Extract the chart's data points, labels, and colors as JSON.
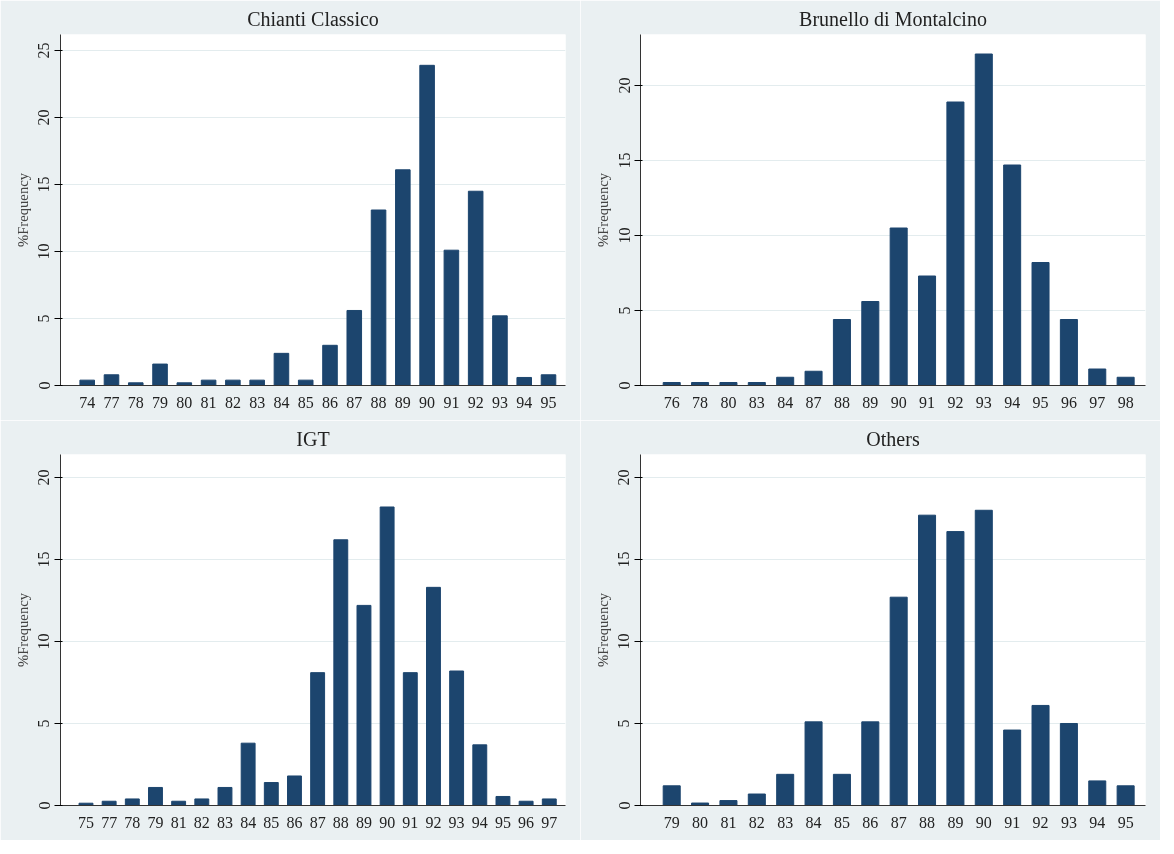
{
  "chart_data": [
    {
      "type": "bar",
      "title": "Chianti Classico",
      "ylabel": "%Frequency",
      "color": "#1c456e",
      "grid": "y",
      "ylim": [
        0,
        26.2
      ],
      "yticks": [
        0,
        5,
        10,
        15,
        20,
        25
      ],
      "categories": [
        "74",
        "77",
        "78",
        "79",
        "80",
        "81",
        "82",
        "83",
        "84",
        "85",
        "86",
        "87",
        "88",
        "89",
        "90",
        "91",
        "92",
        "93",
        "94",
        "95"
      ],
      "values": [
        0.4,
        0.8,
        0.2,
        1.6,
        0.2,
        0.4,
        0.4,
        0.4,
        2.4,
        0.4,
        3.0,
        5.6,
        13.1,
        16.1,
        23.9,
        10.1,
        14.5,
        5.2,
        0.6,
        0.8
      ]
    },
    {
      "type": "bar",
      "title": "Brunello di Montalcino",
      "ylabel": "%Frequency",
      "color": "#1c456e",
      "grid": "y",
      "ylim": [
        0,
        23.4
      ],
      "yticks": [
        0,
        5,
        10,
        15,
        20
      ],
      "categories": [
        "76",
        "78",
        "80",
        "83",
        "84",
        "87",
        "88",
        "89",
        "90",
        "91",
        "92",
        "93",
        "94",
        "95",
        "96",
        "97",
        "98"
      ],
      "values": [
        0.2,
        0.2,
        0.2,
        0.2,
        0.55,
        0.95,
        4.4,
        5.6,
        10.5,
        7.3,
        18.9,
        22.1,
        14.7,
        8.2,
        4.4,
        1.1,
        0.55
      ]
    },
    {
      "type": "bar",
      "title": "IGT",
      "ylabel": "%Frequency",
      "color": "#1c456e",
      "grid": "y",
      "ylim": [
        0,
        21.4
      ],
      "yticks": [
        0,
        5,
        10,
        15,
        20
      ],
      "categories": [
        "75",
        "77",
        "78",
        "79",
        "81",
        "82",
        "83",
        "84",
        "85",
        "86",
        "87",
        "88",
        "89",
        "90",
        "91",
        "92",
        "93",
        "94",
        "95",
        "96",
        "97"
      ],
      "values": [
        0.14,
        0.26,
        0.4,
        1.1,
        0.26,
        0.4,
        1.1,
        3.8,
        1.4,
        1.8,
        8.1,
        16.2,
        12.2,
        18.2,
        8.1,
        13.3,
        8.2,
        3.7,
        0.55,
        0.26,
        0.4
      ]
    },
    {
      "type": "bar",
      "title": "Others",
      "ylabel": "%Frequency",
      "color": "#1c456e",
      "grid": "y",
      "ylim": [
        0,
        21.4
      ],
      "yticks": [
        0,
        5,
        10,
        15,
        20
      ],
      "categories": [
        "79",
        "80",
        "81",
        "82",
        "83",
        "84",
        "85",
        "86",
        "87",
        "88",
        "89",
        "90",
        "91",
        "92",
        "93",
        "94",
        "95"
      ],
      "values": [
        1.2,
        0.15,
        0.3,
        0.7,
        1.9,
        5.1,
        1.9,
        5.1,
        12.7,
        17.7,
        16.7,
        18.0,
        4.6,
        6.1,
        5.0,
        1.5,
        1.2
      ]
    }
  ]
}
